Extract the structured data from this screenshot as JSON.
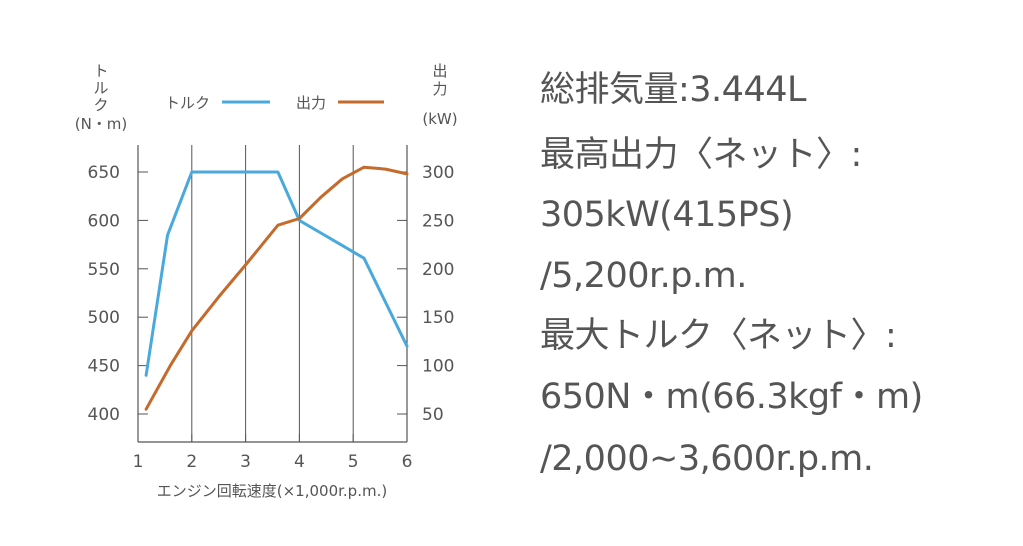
{
  "chart_data": {
    "type": "line",
    "left_axis_title": [
      "ト",
      "ル",
      "ク"
    ],
    "left_axis_unit": "(N・m)",
    "right_axis_title": [
      "出",
      "力"
    ],
    "right_axis_unit": "(kW)",
    "xlabel": "エンジン回転速度(×1,000r.p.m.)",
    "x_ticks": [
      "1",
      "2",
      "3",
      "4",
      "5",
      "6"
    ],
    "y_left_ticks": [
      "400",
      "450",
      "500",
      "550",
      "600",
      "650"
    ],
    "y_right_ticks": [
      "50",
      "100",
      "150",
      "200",
      "250",
      "300"
    ],
    "x_range": [
      1,
      6
    ],
    "y_left_range": [
      400,
      650
    ],
    "y_right_range": [
      50,
      300
    ],
    "grid": "vertical lines at 2, 3, 4, 5, 6",
    "legend_placement": "top",
    "series": [
      {
        "name": "トルク",
        "axis": "left",
        "color": "#4aa9dc",
        "x": [
          1.15,
          1.55,
          2.0,
          3.0,
          3.6,
          4.0,
          4.4,
          4.8,
          5.2,
          6.0
        ],
        "y": [
          440,
          585,
          650,
          650,
          650,
          600,
          587,
          574,
          561,
          470
        ]
      },
      {
        "name": "出力",
        "axis": "right",
        "color": "#c46a2b",
        "x": [
          1.15,
          1.6,
          2.0,
          2.5,
          3.0,
          3.6,
          4.0,
          4.4,
          4.8,
          5.2,
          5.6,
          6.0
        ],
        "y": [
          55,
          100,
          136,
          171,
          204,
          245,
          252,
          274,
          293,
          305,
          303,
          298
        ]
      }
    ]
  },
  "specs": {
    "line1": "総排気量:3.444L",
    "line2": "最高出力〈ネット〉:",
    "line3": "305kW(415PS)",
    "line4": "/5,200r.p.m.",
    "line5": "最大トルク〈ネット〉:",
    "line6": "650N・m(66.3kgf・m)",
    "line7": "/2,000~3,600r.p.m."
  }
}
